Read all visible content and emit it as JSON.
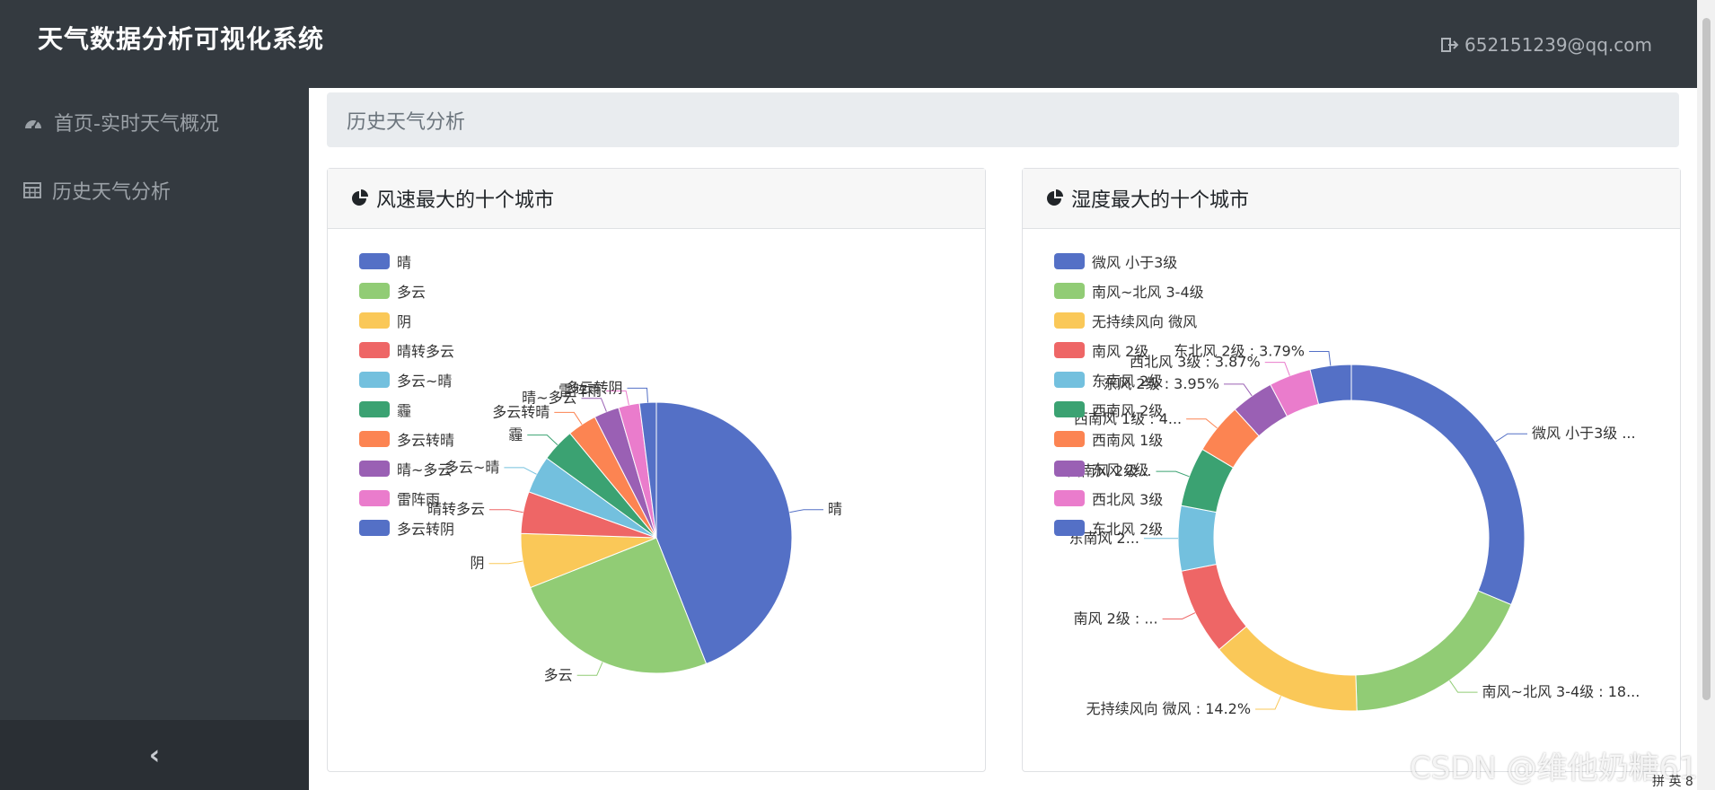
{
  "app": {
    "title": "天气数据分析可视化系统",
    "user_email": "652151239@qq.com"
  },
  "icons": {
    "logout": "sign-out-icon",
    "dashboard": "tachometer-icon",
    "table": "table-icon",
    "collapse": "chevron-left-icon",
    "pie": "pie-chart-icon"
  },
  "sidebar": {
    "items": [
      {
        "label": "首页-实时天气概况",
        "icon": "tachometer-icon"
      },
      {
        "label": "历史天气分析",
        "icon": "table-icon"
      }
    ],
    "collapse_glyph": "‹"
  },
  "breadcrumb": "历史天气分析",
  "cards": [
    {
      "title": "风速最大的十个城市"
    },
    {
      "title": "湿度最大的十个城市"
    }
  ],
  "chart_data": [
    {
      "type": "pie",
      "title": "风速最大的十个城市",
      "categories": [
        "晴",
        "多云",
        "阴",
        "晴转多云",
        "多云~晴",
        "霾",
        "多云转晴",
        "晴~多云",
        "雷阵雨",
        "多云转阴"
      ],
      "values": [
        44.0,
        25.0,
        6.5,
        5.0,
        4.5,
        4.0,
        3.5,
        3.0,
        2.5,
        2.0
      ],
      "slice_labels": [
        "晴",
        "多云",
        "阴",
        "晴转多云",
        "多云~晴",
        "霾",
        "多云转晴",
        "晴~多云",
        "雷阵雨",
        "多云转阴"
      ],
      "colors": [
        "#5470c6",
        "#91cc75",
        "#fac858",
        "#ee6666",
        "#73c0de",
        "#3ba272",
        "#fc8452",
        "#9a60b4",
        "#ea7ccc",
        "#5470c6"
      ],
      "legend": "left"
    },
    {
      "type": "pie",
      "variant": "donut",
      "title": "湿度最大的十个城市",
      "categories": [
        "微风 小于3级",
        "南风~北风 3-4级",
        "无持续风向 微风",
        "南风 2级",
        "东南风 2级",
        "西南风 2级",
        "西南风 1级",
        "东风 2级",
        "西北风 3级",
        "东北风 2级"
      ],
      "values": [
        31.0,
        18.0,
        14.2,
        8.0,
        6.0,
        5.5,
        4.7,
        3.95,
        3.87,
        3.79
      ],
      "slice_labels": [
        "微风 小于3级 ...",
        "南风~北风 3-4级 : 18...",
        "无持续风向 微风 : 14.2%",
        "南风 2级 : ...",
        "东南风 2...",
        "西南风 2级...",
        "西南风 1级 : 4...",
        "东风 2级 : 3.95%",
        "西北风 3级 : 3.87%",
        "东北风 2级 : 3.79%"
      ],
      "colors": [
        "#5470c6",
        "#91cc75",
        "#fac858",
        "#ee6666",
        "#73c0de",
        "#3ba272",
        "#fc8452",
        "#9a60b4",
        "#ea7ccc",
        "#5470c6"
      ],
      "legend": "left"
    }
  ],
  "watermark": "CSDN @维他奶糖61",
  "ime_text": "拼 英 8"
}
